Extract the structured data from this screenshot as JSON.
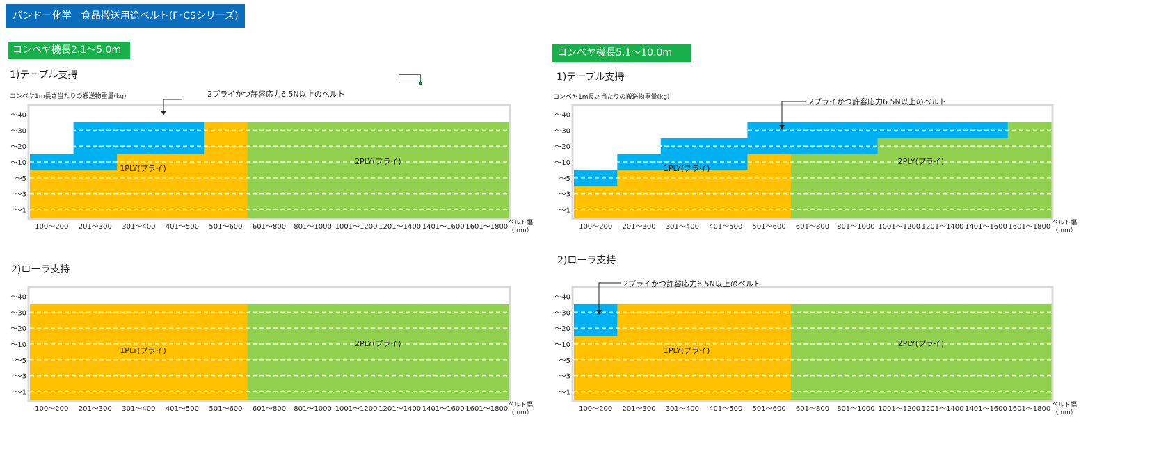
{
  "title": "バンドー化学　食品搬送用途ベルト(F･CSシリーズ)",
  "colors": {
    "title_bg": "#0a6ebd",
    "section_bg": "#18b04a",
    "one_ply": "#ffc000",
    "two_ply": "#92d050",
    "high_stress": "#00b0f0",
    "frame": "#d9d9d9",
    "grid": "#ffffff"
  },
  "sections": [
    {
      "label": "コンベヤ機長2.1～5.0m",
      "table_label": "1)テーブル支持",
      "roller_label": "2)ローラ支持",
      "ylabel": "コンベヤ1m長さ当たりの搬送物重量(kg)"
    },
    {
      "label": "コンベヤ機長5.1～10.0m",
      "table_label": "1)テーブル支持",
      "roller_label": "2)ローラ支持",
      "ylabel": "コンベヤ1m長さ当たりの搬送物重量(kg)"
    }
  ],
  "xlabel_line1": "ベルト幅",
  "xlabel_line2": "（mm）",
  "chart_data": [
    {
      "type": "heatmap",
      "title": "1)テーブル支持",
      "section": "コンベヤ機長2.1～5.0m",
      "categories": [
        "100～200",
        "201～300",
        "301～400",
        "401～500",
        "501～600",
        "601～800",
        "801～1000",
        "1001～1200",
        "1201～1400",
        "1401～1600",
        "1601～1800"
      ],
      "y_levels": [
        "～1",
        "～3",
        "～5",
        "～10",
        "～20",
        "～30",
        "～40"
      ],
      "fill_top_level": [
        4,
        6,
        6,
        6,
        6,
        6,
        6,
        6,
        6,
        6,
        6
      ],
      "one_ply_top_level": [
        3,
        3,
        4,
        4,
        6,
        0,
        0,
        0,
        0,
        0,
        0
      ],
      "two_ply_from_category": 5,
      "labels": {
        "one_ply": "1PLY(プライ)",
        "two_ply": "2PLY(プライ)"
      },
      "annotation": "2プライかつ許容応力6.5N以上のベルト",
      "legend": {
        "one_ply": "1PLY(プライ)",
        "two_ply": "2PLY(プライ)",
        "high_stress": "2プライかつ許容応力6.5N以上のベルト"
      }
    },
    {
      "type": "heatmap",
      "title": "2)ローラ支持",
      "section": "コンベヤ機長2.1～5.0m",
      "categories": [
        "100～200",
        "201～300",
        "301～400",
        "401～500",
        "501～600",
        "601～800",
        "801～1000",
        "1001～1200",
        "1201～1400",
        "1401～1600",
        "1601～1800"
      ],
      "y_levels": [
        "～1",
        "～3",
        "～5",
        "～10",
        "～20",
        "～30",
        "～40"
      ],
      "fill_top_level": [
        6,
        6,
        6,
        6,
        6,
        6,
        6,
        6,
        6,
        6,
        6
      ],
      "one_ply_top_level": [
        6,
        6,
        6,
        6,
        6,
        0,
        0,
        0,
        0,
        0,
        0
      ],
      "two_ply_from_category": 5,
      "labels": {
        "one_ply": "1PLY(プライ)",
        "two_ply": "2PLY(プライ)"
      },
      "annotation": ""
    },
    {
      "type": "heatmap",
      "title": "1)テーブル支持",
      "section": "コンベヤ機長5.1～10.0m",
      "categories": [
        "100～200",
        "201～300",
        "301～400",
        "401～500",
        "501～600",
        "601～800",
        "801～1000",
        "1001～1200",
        "1201～1400",
        "1401～1600",
        "1601～1800"
      ],
      "y_levels": [
        "～1",
        "～3",
        "～5",
        "～10",
        "～20",
        "～30",
        "～40"
      ],
      "fill_top_level": [
        3,
        4,
        5,
        5,
        6,
        6,
        6,
        6,
        6,
        6,
        6
      ],
      "one_ply_top_level": [
        2,
        3,
        3,
        3,
        4,
        0,
        0,
        0,
        0,
        0,
        0
      ],
      "two_ply_from_category": 5,
      "two_ply_top_level": [
        0,
        0,
        0,
        0,
        0,
        4,
        4,
        5,
        5,
        5,
        6
      ],
      "labels": {
        "one_ply": "1PLY(プライ)",
        "two_ply": "2PLY(プライ)"
      },
      "annotation": "2プライかつ許容応力6.5N以上のベルト"
    },
    {
      "type": "heatmap",
      "title": "2)ローラ支持",
      "section": "コンベヤ機長5.1～10.0m",
      "categories": [
        "100～200",
        "201～300",
        "301～400",
        "401～500",
        "501～600",
        "601～800",
        "801～1000",
        "1001～1200",
        "1201～1400",
        "1401～1600",
        "1601～1800"
      ],
      "y_levels": [
        "～1",
        "～3",
        "～5",
        "～10",
        "～20",
        "～30",
        "～40"
      ],
      "fill_top_level": [
        6,
        6,
        6,
        6,
        6,
        6,
        6,
        6,
        6,
        6,
        6
      ],
      "one_ply_top_level": [
        4,
        6,
        6,
        6,
        6,
        0,
        0,
        0,
        0,
        0,
        0
      ],
      "two_ply_from_category": 5,
      "labels": {
        "one_ply": "1PLY(プライ)",
        "two_ply": "2PLY(プライ)"
      },
      "annotation": "2プライかつ許容応力6.5N以上のベルト"
    }
  ]
}
